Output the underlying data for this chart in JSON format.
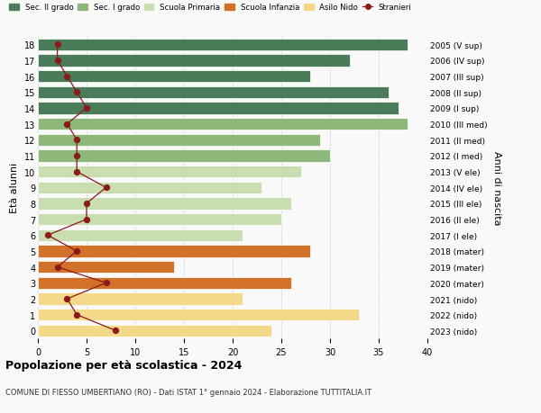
{
  "ages": [
    18,
    17,
    16,
    15,
    14,
    13,
    12,
    11,
    10,
    9,
    8,
    7,
    6,
    5,
    4,
    3,
    2,
    1,
    0
  ],
  "years": [
    "2005 (V sup)",
    "2006 (IV sup)",
    "2007 (III sup)",
    "2008 (II sup)",
    "2009 (I sup)",
    "2010 (III med)",
    "2011 (II med)",
    "2012 (I med)",
    "2013 (V ele)",
    "2014 (IV ele)",
    "2015 (III ele)",
    "2016 (II ele)",
    "2017 (I ele)",
    "2018 (mater)",
    "2019 (mater)",
    "2020 (mater)",
    "2021 (nido)",
    "2022 (nido)",
    "2023 (nido)"
  ],
  "bar_values": [
    38,
    32,
    28,
    36,
    37,
    38,
    29,
    30,
    27,
    23,
    26,
    25,
    21,
    28,
    14,
    26,
    21,
    33,
    24
  ],
  "bar_colors": [
    "#4a7c59",
    "#4a7c59",
    "#4a7c59",
    "#4a7c59",
    "#4a7c59",
    "#8db87a",
    "#8db87a",
    "#8db87a",
    "#c8ddb0",
    "#c8ddb0",
    "#c8ddb0",
    "#c8ddb0",
    "#c8ddb0",
    "#d2722a",
    "#d2722a",
    "#d2722a",
    "#f5d98b",
    "#f5d98b",
    "#f5d98b"
  ],
  "stranieri": [
    2,
    2,
    3,
    4,
    5,
    3,
    4,
    4,
    4,
    7,
    5,
    5,
    1,
    4,
    2,
    7,
    3,
    4,
    8
  ],
  "legend_labels": [
    "Sec. II grado",
    "Sec. I grado",
    "Scuola Primaria",
    "Scuola Infanzia",
    "Asilo Nido",
    "Stranieri"
  ],
  "legend_colors": [
    "#4a7c59",
    "#8db87a",
    "#c8ddb0",
    "#d2722a",
    "#f5d98b",
    "#8b1a1a"
  ],
  "title": "Popolazione per età scolastica - 2024",
  "subtitle": "COMUNE DI FIESSO UMBERTIANO (RO) - Dati ISTAT 1° gennaio 2024 - Elaborazione TUTTITALIA.IT",
  "xlabel_left": "Età alunni",
  "xlabel_right": "Anni di nascita",
  "xlim": [
    0,
    40
  ],
  "xticks": [
    0,
    5,
    10,
    15,
    20,
    25,
    30,
    35,
    40
  ],
  "bg_color": "#f9f9f9",
  "plot_bg_color": "#f9f9f9",
  "grid_color": "#cccccc"
}
